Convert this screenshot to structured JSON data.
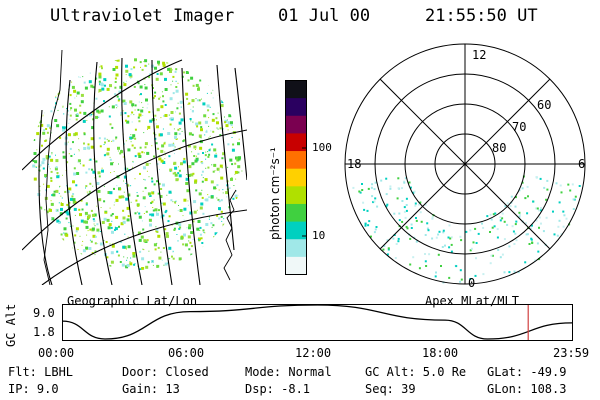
{
  "header": {
    "instrument": "Ultraviolet Imager",
    "date": "01 Jul 00",
    "time": "21:55:50 UT"
  },
  "colorbar": {
    "unit_label": "photon cm⁻²s⁻¹",
    "tick_labels": [
      "100",
      "10"
    ],
    "colors": [
      "#101018",
      "#2a0060",
      "#7a0050",
      "#c80000",
      "#ff7000",
      "#ffd000",
      "#b0e000",
      "#40d040",
      "#00d0c0",
      "#a0e8e8",
      "#f0f8f8"
    ]
  },
  "polar_plot": {
    "mlt_labels": [
      "12",
      "18",
      "6",
      "0"
    ],
    "lat_labels": [
      "60",
      "70",
      "80"
    ],
    "title": "Apex MLat/MLT"
  },
  "geo_plot": {
    "title": "Geographic Lat/Lon"
  },
  "altitude_chart": {
    "ylabel": "GC Alt",
    "y_ticks": [
      "9.0",
      "1.8"
    ],
    "x_ticks": [
      "00:00",
      "06:00",
      "12:00",
      "18:00",
      "23:59"
    ],
    "marker_color": "#d04040",
    "chart_data": {
      "type": "line",
      "xlabel": "",
      "ylabel": "GC Alt",
      "ylim": [
        1.8,
        9.0
      ],
      "x": [
        "00:00",
        "02:00",
        "06:00",
        "12:00",
        "18:00",
        "20:00",
        "23:59"
      ],
      "values": [
        5.6,
        1.8,
        7.6,
        9.0,
        5.8,
        1.8,
        5.2
      ],
      "marker_time": "21:55"
    }
  },
  "footer": {
    "flt": "Flt: LBHL",
    "ip": "IP:  9.0",
    "door": "Door: Closed",
    "gain": "Gain: 13",
    "mode": "Mode: Normal",
    "dsp": "Dsp:   -8.1",
    "gcalt": "GC Alt: 5.0 Re",
    "seq": "Seq: 39",
    "glat": "GLat: -49.9",
    "glon": "GLon: 108.3"
  }
}
